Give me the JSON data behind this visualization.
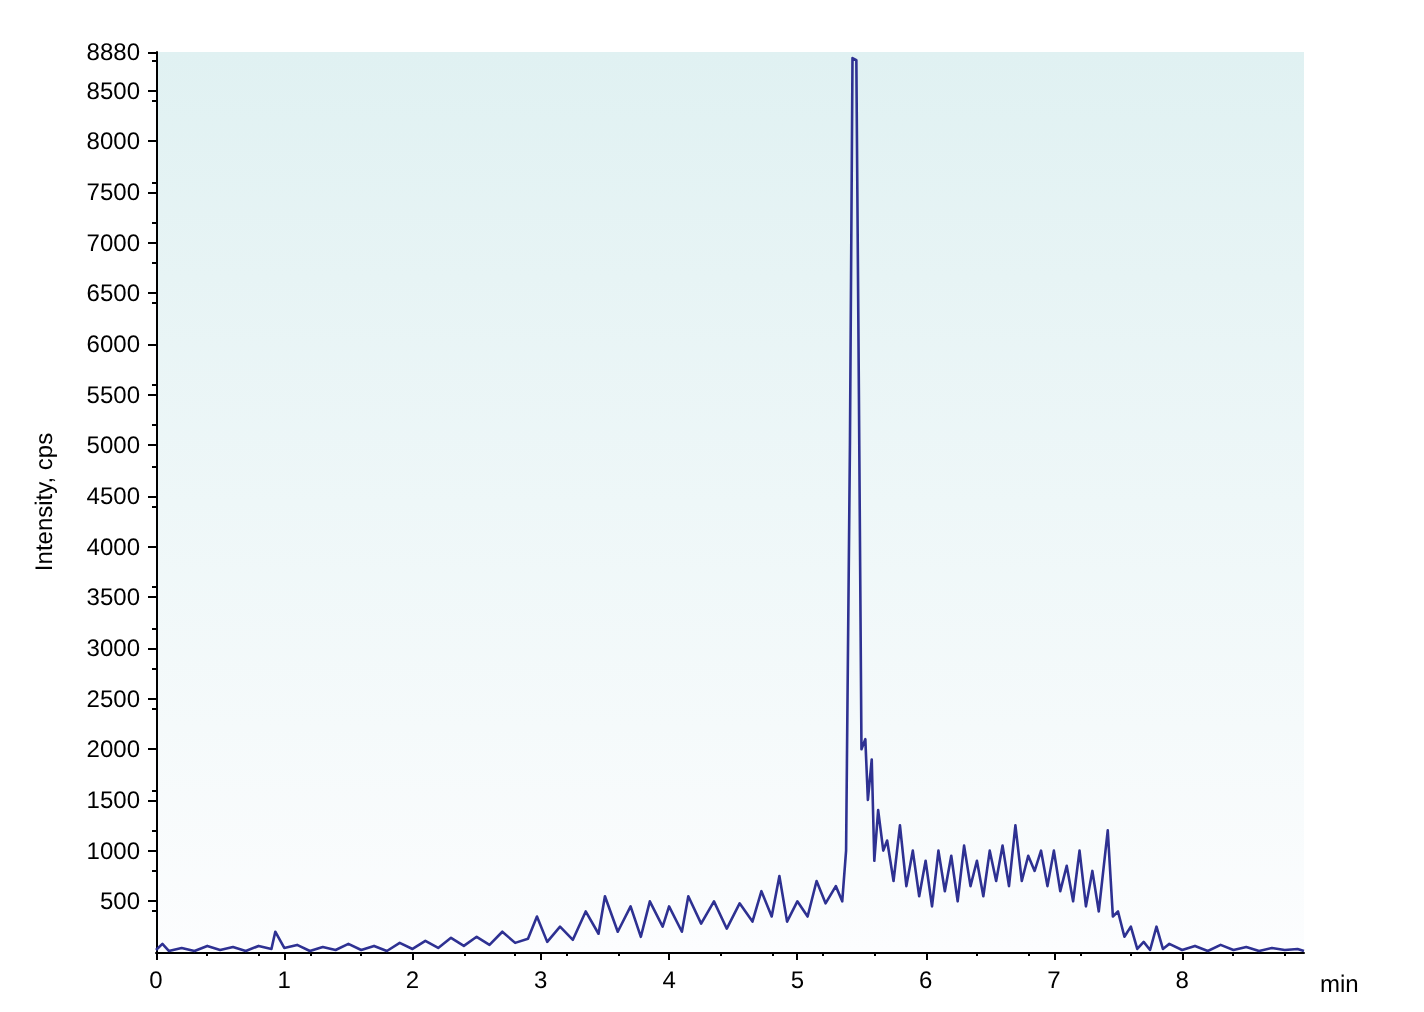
{
  "chart_data": {
    "type": "line",
    "xlabel": "min",
    "ylabel": "Intensity, cps",
    "xlim": [
      0,
      8.95
    ],
    "xticks": [
      0,
      1,
      2,
      3,
      4,
      5,
      6,
      7,
      8
    ],
    "ylim": [
      0,
      8880
    ],
    "yticks": [
      500,
      1000,
      1500,
      2000,
      2500,
      3000,
      3500,
      4000,
      4500,
      5000,
      5500,
      6000,
      6500,
      7000,
      7500,
      8000,
      8500,
      8880
    ],
    "grid": false,
    "marker": "none",
    "line_style": "solid",
    "series": [
      {
        "color": "#2e3192",
        "x": [
          0,
          0.05,
          0.1,
          0.2,
          0.3,
          0.4,
          0.5,
          0.6,
          0.7,
          0.8,
          0.9,
          0.93,
          1.0,
          1.1,
          1.2,
          1.3,
          1.4,
          1.5,
          1.6,
          1.7,
          1.8,
          1.9,
          2.0,
          2.1,
          2.2,
          2.3,
          2.4,
          2.5,
          2.6,
          2.7,
          2.8,
          2.9,
          2.97,
          3.05,
          3.15,
          3.25,
          3.35,
          3.45,
          3.5,
          3.6,
          3.7,
          3.78,
          3.85,
          3.95,
          4.0,
          4.1,
          4.15,
          4.25,
          4.35,
          4.45,
          4.55,
          4.65,
          4.72,
          4.8,
          4.86,
          4.92,
          5.0,
          5.08,
          5.15,
          5.22,
          5.3,
          5.35,
          5.38,
          5.41,
          5.43,
          5.46,
          5.48,
          5.5,
          5.53,
          5.55,
          5.58,
          5.6,
          5.63,
          5.67,
          5.7,
          5.75,
          5.8,
          5.85,
          5.9,
          5.95,
          6.0,
          6.05,
          6.1,
          6.15,
          6.2,
          6.25,
          6.3,
          6.35,
          6.4,
          6.45,
          6.5,
          6.55,
          6.6,
          6.65,
          6.7,
          6.75,
          6.8,
          6.85,
          6.9,
          6.95,
          7.0,
          7.05,
          7.1,
          7.15,
          7.2,
          7.25,
          7.3,
          7.35,
          7.42,
          7.46,
          7.5,
          7.55,
          7.6,
          7.65,
          7.7,
          7.75,
          7.8,
          7.85,
          7.9,
          8.0,
          8.1,
          8.2,
          8.3,
          8.4,
          8.5,
          8.6,
          8.7,
          8.8,
          8.9,
          8.95
        ],
        "values": [
          20,
          80,
          10,
          40,
          10,
          60,
          20,
          50,
          10,
          60,
          30,
          200,
          40,
          70,
          10,
          50,
          20,
          80,
          20,
          60,
          10,
          90,
          30,
          110,
          40,
          140,
          60,
          150,
          70,
          200,
          90,
          130,
          350,
          100,
          250,
          120,
          400,
          180,
          550,
          200,
          450,
          150,
          500,
          250,
          450,
          200,
          550,
          280,
          500,
          230,
          480,
          300,
          600,
          350,
          750,
          300,
          500,
          350,
          700,
          480,
          650,
          500,
          1000,
          5000,
          8820,
          8800,
          5500,
          2000,
          2100,
          1500,
          1900,
          900,
          1400,
          1000,
          1100,
          700,
          1250,
          650,
          1000,
          550,
          900,
          450,
          1000,
          600,
          950,
          500,
          1050,
          650,
          900,
          550,
          1000,
          700,
          1050,
          650,
          1250,
          700,
          950,
          800,
          1000,
          650,
          1000,
          600,
          850,
          500,
          1000,
          450,
          800,
          400,
          1200,
          350,
          400,
          150,
          250,
          30,
          100,
          20,
          250,
          30,
          80,
          20,
          60,
          10,
          70,
          20,
          50,
          10,
          40,
          20,
          30,
          10
        ]
      }
    ]
  }
}
